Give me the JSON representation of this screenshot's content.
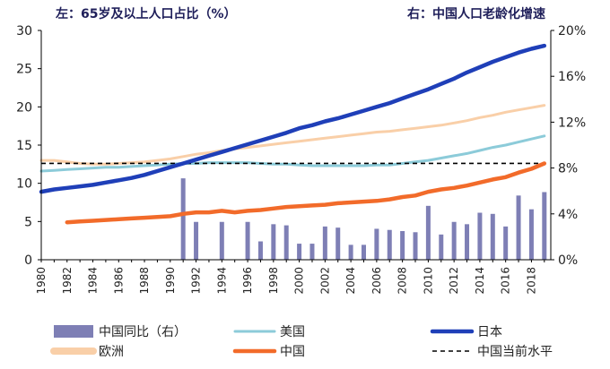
{
  "chart_data": {
    "type": "line+bar",
    "left_axis_title": "左：65岁及以上人口占比（%）",
    "right_axis_title": "右：中国人口老龄化增速",
    "left_ylim": [
      0,
      30
    ],
    "left_ticks": [
      "0",
      "5",
      "10",
      "15",
      "20",
      "25",
      "30"
    ],
    "right_ylim": [
      0,
      20
    ],
    "right_ticks": [
      "0%",
      "4%",
      "8%",
      "12%",
      "16%",
      "20%"
    ],
    "x_tick_labels": [
      "1980",
      "1982",
      "1984",
      "1986",
      "1988",
      "1990",
      "1992",
      "1994",
      "1996",
      "1998",
      "2000",
      "2002",
      "2004",
      "2006",
      "2008",
      "2010",
      "2012",
      "2014",
      "2016",
      "2018"
    ],
    "series": [
      {
        "name": "欧洲",
        "color": "#f9cfa8",
        "axis": "left",
        "x": [
          1980,
          1981,
          1982,
          1983,
          1984,
          1985,
          1986,
          1987,
          1988,
          1989,
          1990,
          1991,
          1992,
          1993,
          1994,
          1995,
          1996,
          1997,
          1998,
          1999,
          2000,
          2001,
          2002,
          2003,
          2004,
          2005,
          2006,
          2007,
          2008,
          2009,
          2010,
          2011,
          2012,
          2013,
          2014,
          2015,
          2016,
          2017,
          2018,
          2019
        ],
        "values": [
          13.0,
          13.0,
          12.8,
          12.6,
          12.5,
          12.5,
          12.6,
          12.7,
          12.8,
          13.0,
          13.2,
          13.5,
          13.8,
          14.0,
          14.3,
          14.5,
          14.7,
          14.9,
          15.1,
          15.3,
          15.5,
          15.7,
          15.9,
          16.1,
          16.3,
          16.5,
          16.7,
          16.8,
          17.0,
          17.2,
          17.4,
          17.6,
          17.9,
          18.2,
          18.6,
          18.9,
          19.3,
          19.6,
          19.9,
          20.2
        ]
      },
      {
        "name": "美国",
        "color": "#8ccbd9",
        "axis": "left",
        "x": [
          1980,
          1981,
          1982,
          1983,
          1984,
          1985,
          1986,
          1987,
          1988,
          1989,
          1990,
          1991,
          1992,
          1993,
          1994,
          1995,
          1996,
          1997,
          1998,
          1999,
          2000,
          2001,
          2002,
          2003,
          2004,
          2005,
          2006,
          2007,
          2008,
          2009,
          2010,
          2011,
          2012,
          2013,
          2014,
          2015,
          2016,
          2017,
          2018,
          2019
        ],
        "values": [
          11.6,
          11.7,
          11.8,
          11.9,
          12.0,
          12.1,
          12.1,
          12.2,
          12.3,
          12.4,
          12.5,
          12.6,
          12.6,
          12.7,
          12.7,
          12.7,
          12.7,
          12.6,
          12.5,
          12.5,
          12.4,
          12.3,
          12.3,
          12.3,
          12.3,
          12.3,
          12.4,
          12.4,
          12.6,
          12.8,
          13.0,
          13.3,
          13.6,
          13.9,
          14.3,
          14.7,
          15.0,
          15.4,
          15.8,
          16.2
        ]
      },
      {
        "name": "日本",
        "color": "#1f3fb8",
        "axis": "left",
        "x": [
          1980,
          1981,
          1982,
          1983,
          1984,
          1985,
          1986,
          1987,
          1988,
          1989,
          1990,
          1991,
          1992,
          1993,
          1994,
          1995,
          1996,
          1997,
          1998,
          1999,
          2000,
          2001,
          2002,
          2003,
          2004,
          2005,
          2006,
          2007,
          2008,
          2009,
          2010,
          2011,
          2012,
          2013,
          2014,
          2015,
          2016,
          2017,
          2018,
          2019
        ],
        "values": [
          8.9,
          9.2,
          9.4,
          9.6,
          9.8,
          10.1,
          10.4,
          10.7,
          11.1,
          11.6,
          12.1,
          12.6,
          13.1,
          13.6,
          14.1,
          14.6,
          15.1,
          15.6,
          16.1,
          16.6,
          17.2,
          17.6,
          18.1,
          18.5,
          19.0,
          19.5,
          20.0,
          20.5,
          21.1,
          21.7,
          22.3,
          23.0,
          23.7,
          24.5,
          25.2,
          25.9,
          26.5,
          27.1,
          27.6,
          28.0
        ]
      },
      {
        "name": "中国",
        "color": "#f26b2a",
        "axis": "left",
        "x": [
          1982,
          1983,
          1984,
          1985,
          1986,
          1987,
          1988,
          1989,
          1990,
          1991,
          1992,
          1993,
          1994,
          1995,
          1996,
          1997,
          1998,
          1999,
          2000,
          2001,
          2002,
          2003,
          2004,
          2005,
          2006,
          2007,
          2008,
          2009,
          2010,
          2011,
          2012,
          2013,
          2014,
          2015,
          2016,
          2017,
          2018,
          2019
        ],
        "values": [
          4.9,
          5.0,
          5.1,
          5.2,
          5.3,
          5.4,
          5.5,
          5.6,
          5.7,
          6.0,
          6.2,
          6.2,
          6.4,
          6.2,
          6.4,
          6.5,
          6.7,
          6.9,
          7.0,
          7.1,
          7.2,
          7.4,
          7.5,
          7.6,
          7.7,
          7.9,
          8.2,
          8.4,
          8.9,
          9.2,
          9.4,
          9.7,
          10.1,
          10.5,
          10.8,
          11.4,
          11.9,
          12.6
        ]
      },
      {
        "name": "中国同比（右）",
        "type": "bar",
        "color": "#7e7fb5",
        "axis": "right",
        "x": [
          1991,
          1992,
          1993,
          1994,
          1995,
          1996,
          1997,
          1998,
          1999,
          2000,
          2001,
          2002,
          2003,
          2004,
          2005,
          2006,
          2007,
          2008,
          2009,
          2010,
          2011,
          2012,
          2013,
          2014,
          2015,
          2016,
          2017,
          2018,
          2019
        ],
        "values": [
          7.1,
          3.3,
          0,
          3.3,
          0,
          3.3,
          1.6,
          3.1,
          3.0,
          1.4,
          1.4,
          2.9,
          2.8,
          1.3,
          1.3,
          2.7,
          2.6,
          2.5,
          2.4,
          4.7,
          2.2,
          3.3,
          3.1,
          4.1,
          4.0,
          2.9,
          5.6,
          4.4,
          5.9
        ]
      },
      {
        "name": "中国当前水平",
        "type": "hline",
        "color": "#000000",
        "axis": "left",
        "value": 12.6
      }
    ]
  }
}
